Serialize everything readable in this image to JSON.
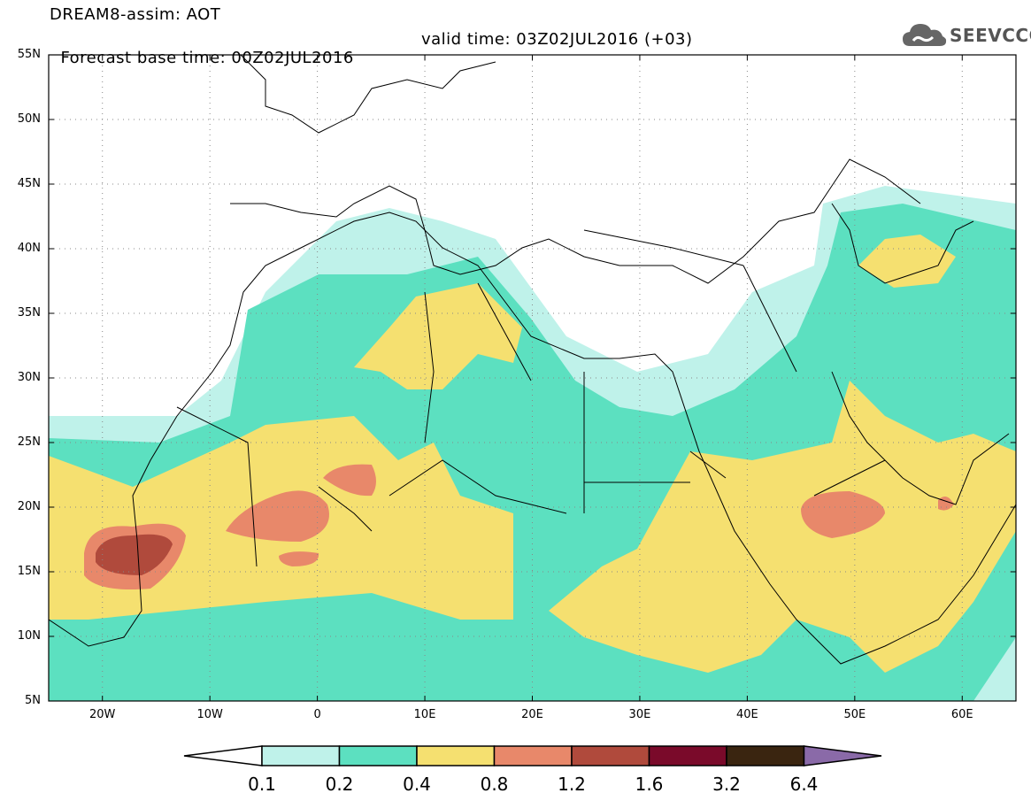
{
  "header": {
    "title": "DREAM8-assim: AOT",
    "base_time": "Forecast base time: 00Z02JUL2016",
    "valid_time": "valid time: 03Z02JUL2016 (+03)"
  },
  "logo": {
    "text": "SEEVCCC",
    "icon": "cloud-icon"
  },
  "axes": {
    "lat_labels": [
      "55N",
      "50N",
      "45N",
      "40N",
      "35N",
      "30N",
      "25N",
      "20N",
      "15N",
      "10N",
      "5N"
    ],
    "lon_labels": [
      "20W",
      "10W",
      "0",
      "10E",
      "20E",
      "30E",
      "40E",
      "50E",
      "60E"
    ],
    "lon_range": [
      -25,
      65
    ],
    "lat_range": [
      5,
      55
    ],
    "grid": "dotted"
  },
  "colorbar": {
    "labels": [
      "0.1",
      "0.2",
      "0.4",
      "0.8",
      "1.2",
      "1.6",
      "3.2",
      "6.4"
    ],
    "colors": [
      "#ffffff",
      "#bff2ea",
      "#5ce0c0",
      "#f5e070",
      "#e8886a",
      "#b04a3c",
      "#7a0a2a",
      "#3a2510",
      "#8a6aa8"
    ]
  }
}
